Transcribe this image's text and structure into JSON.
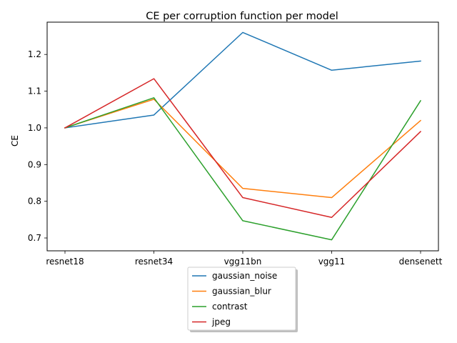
{
  "chart_data": {
    "type": "line",
    "title": "CE per corruption function per model",
    "xlabel": "",
    "ylabel": "CE",
    "categories": [
      "resnet18",
      "resnet34",
      "vgg11bn",
      "vgg11",
      "densenett"
    ],
    "ylim": [
      0.665,
      1.288
    ],
    "yticks": [
      0.7,
      0.8,
      0.9,
      1.0,
      1.1,
      1.2
    ],
    "ytick_labels": [
      "0.7",
      "0.8",
      "0.9",
      "1.0",
      "1.1",
      "1.2"
    ],
    "grid": false,
    "legend_position": "below plot, centered, shadowed box",
    "series": [
      {
        "name": "gaussian_noise",
        "color": "#1f77b4",
        "values": [
          1.0,
          1.035,
          1.26,
          1.157,
          1.182
        ]
      },
      {
        "name": "gaussian_blur",
        "color": "#ff7f0e",
        "values": [
          1.0,
          1.078,
          0.835,
          0.81,
          1.02
        ]
      },
      {
        "name": "contrast",
        "color": "#2ca02c",
        "values": [
          1.0,
          1.082,
          0.747,
          0.695,
          1.074
        ]
      },
      {
        "name": "jpeg",
        "color": "#d62728",
        "values": [
          1.0,
          1.134,
          0.81,
          0.756,
          0.99
        ]
      }
    ]
  }
}
